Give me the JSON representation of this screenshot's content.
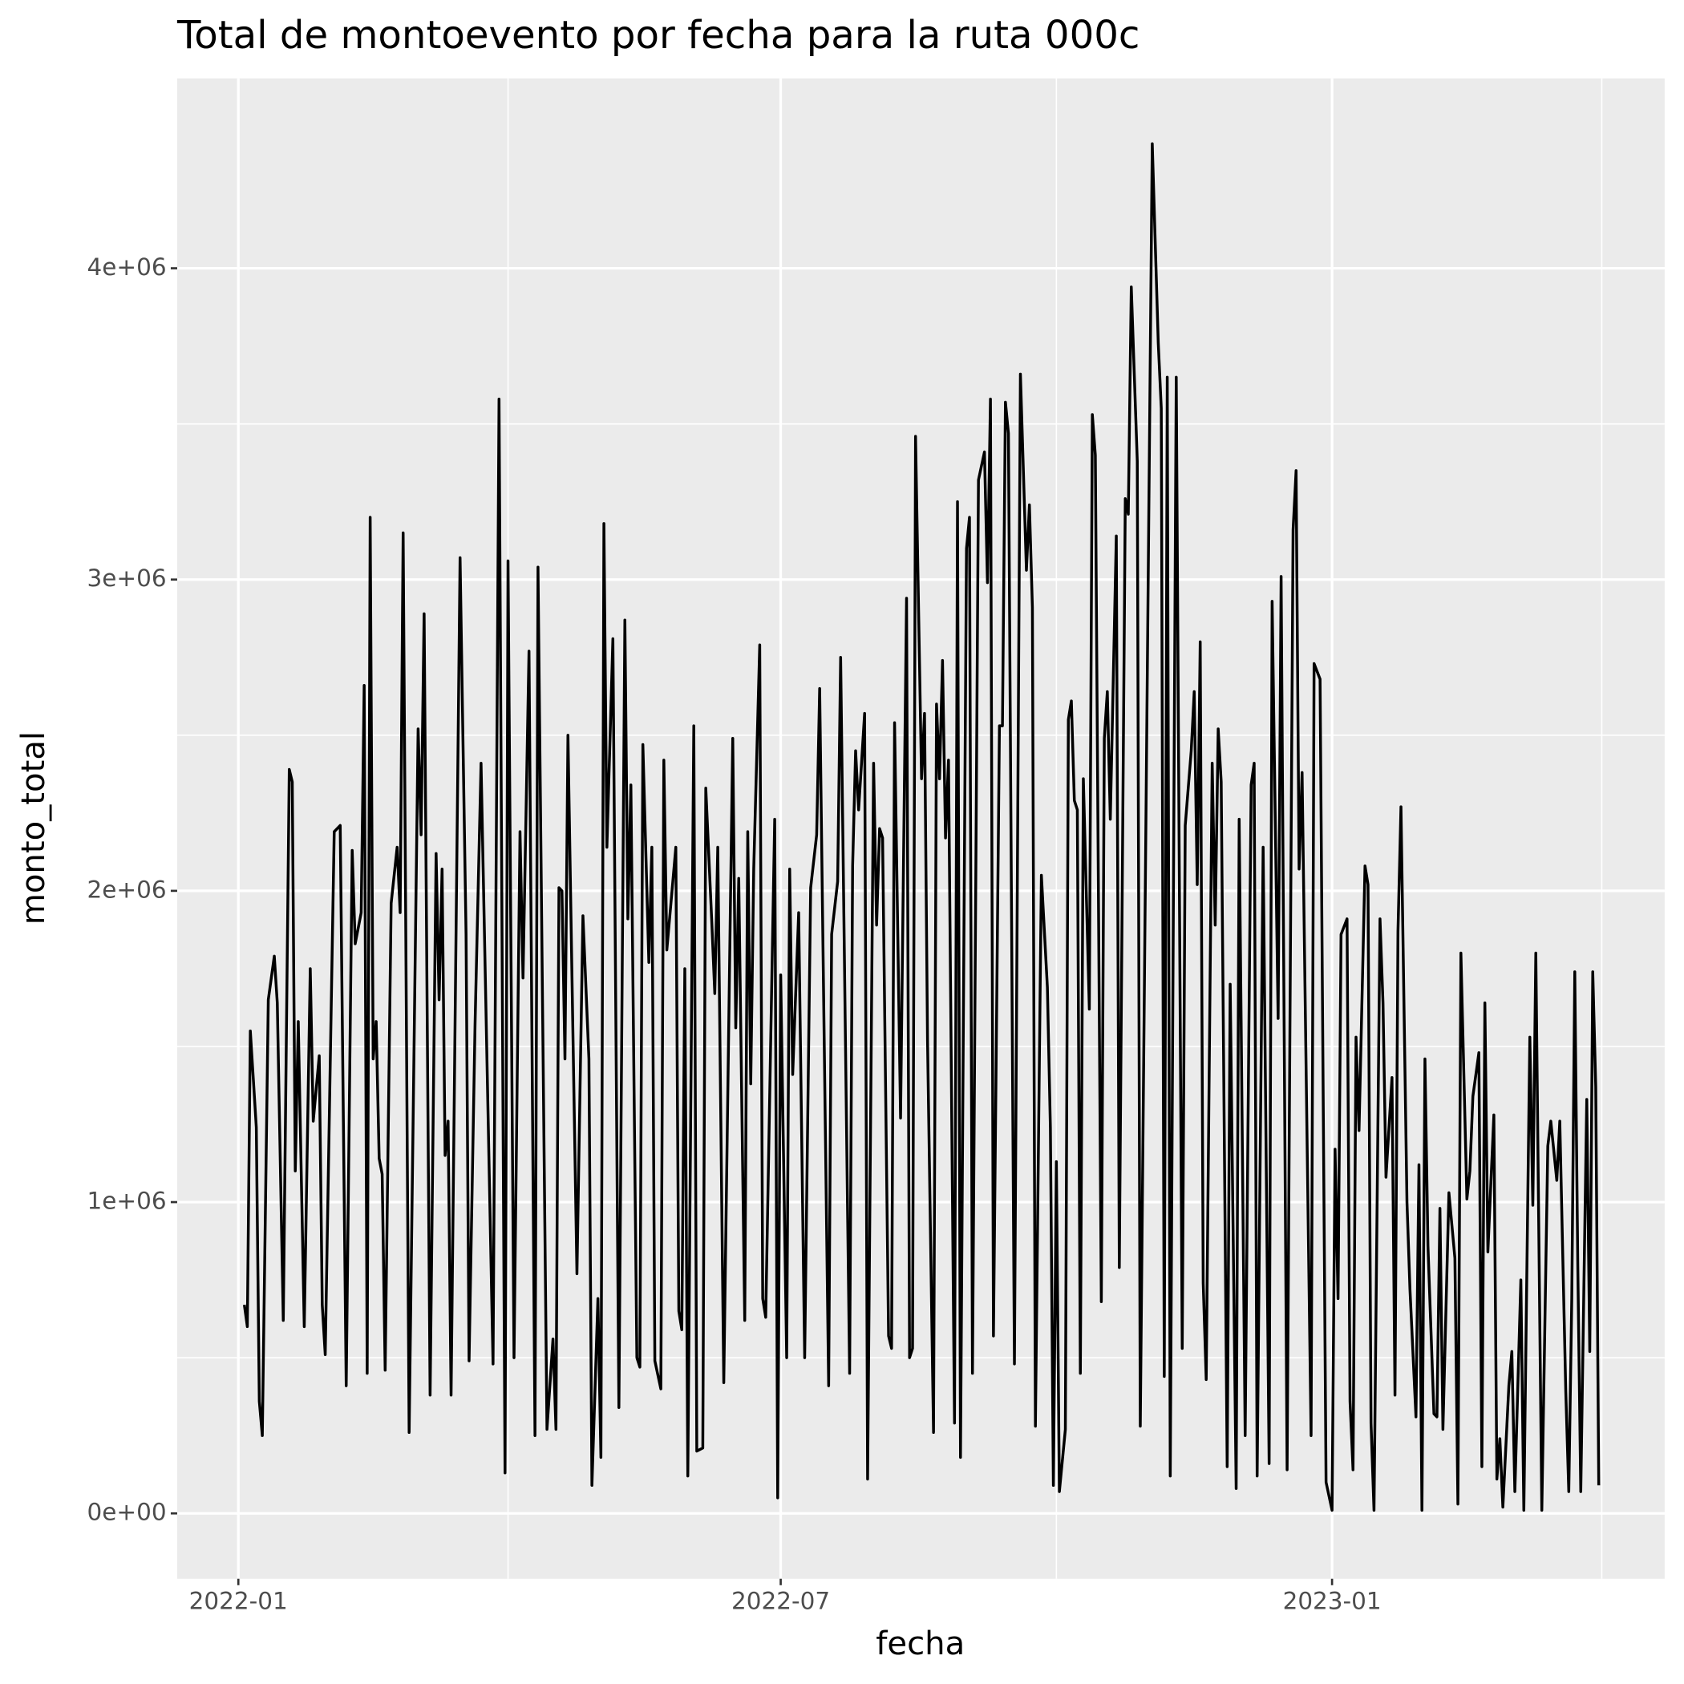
{
  "chart_data": {
    "type": "line",
    "title": "Total de montoevento por fecha para la ruta 000c",
    "x_label": "fecha",
    "y_label": "monto_total",
    "xlim": [
      -20.4,
      476
    ],
    "xticks": [
      {
        "value": 0,
        "label": "2022-01"
      },
      {
        "value": 181,
        "label": "2022-07"
      },
      {
        "value": 365,
        "label": "2023-01"
      }
    ],
    "xminor": [
      90,
      273,
      455
    ],
    "ylim": [
      -210000,
      4610000
    ],
    "yticks": [
      {
        "value": 0,
        "label": "0e+00"
      },
      {
        "value": 1000000,
        "label": "1e+06"
      },
      {
        "value": 2000000,
        "label": "2e+06"
      },
      {
        "value": 3000000,
        "label": "3e+06"
      },
      {
        "value": 4000000,
        "label": "4e+06"
      }
    ],
    "yminor": [
      500000,
      1500000,
      2500000,
      3500000
    ],
    "grid": true,
    "series": [
      {
        "color": "#000000",
        "x": [
          2,
          3,
          4,
          6,
          7,
          8,
          10,
          12,
          13,
          15,
          17,
          18,
          19,
          20,
          22,
          24,
          25,
          27,
          28,
          29,
          32,
          34,
          36,
          38,
          39,
          41,
          42,
          43,
          44,
          45,
          46,
          47,
          48,
          49,
          51,
          53,
          54,
          55,
          57,
          60,
          61,
          62,
          64,
          66,
          67,
          68,
          69,
          70,
          71,
          74,
          76,
          77,
          79,
          81,
          85,
          87,
          89,
          90,
          92,
          94,
          95,
          97,
          99,
          100,
          103,
          105,
          106,
          107,
          108,
          109,
          110,
          113,
          115,
          117,
          118,
          120,
          121,
          122,
          123,
          125,
          127,
          129,
          130,
          131,
          133,
          134,
          135,
          137,
          138,
          139,
          141,
          142,
          143,
          146,
          147,
          148,
          149,
          150,
          152,
          153,
          155,
          156,
          158,
          159,
          160,
          162,
          165,
          166,
          167,
          169,
          170,
          171,
          172,
          174,
          175,
          176,
          179,
          180,
          181,
          183,
          184,
          185,
          187,
          189,
          191,
          193,
          194,
          197,
          198,
          200,
          201,
          204,
          205,
          206,
          207,
          209,
          210,
          212,
          213,
          214,
          215,
          217,
          218,
          219,
          221,
          223,
          224,
          225,
          226,
          228,
          229,
          230,
          232,
          233,
          234,
          235,
          236,
          237,
          239,
          240,
          241,
          243,
          244,
          245,
          247,
          249,
          250,
          251,
          252,
          254,
          255,
          256,
          257,
          259,
          261,
          263,
          264,
          265,
          266,
          268,
          270,
          271,
          272,
          273,
          274,
          276,
          277,
          278,
          279,
          280,
          281,
          282,
          284,
          285,
          286,
          288,
          289,
          290,
          291,
          293,
          294,
          296,
          297,
          298,
          300,
          301,
          305,
          307,
          308,
          309,
          310,
          311,
          313,
          315,
          316,
          318,
          319,
          320,
          321,
          322,
          323,
          325,
          326,
          327,
          328,
          330,
          331,
          333,
          334,
          336,
          338,
          339,
          340,
          342,
          344,
          345,
          347,
          348,
          350,
          352,
          353,
          354,
          355,
          358,
          359,
          361,
          363,
          365,
          366,
          367,
          368,
          370,
          371,
          372,
          373,
          374,
          376,
          377,
          378,
          379,
          381,
          382,
          383,
          385,
          386,
          387,
          388,
          390,
          391,
          393,
          394,
          395,
          396,
          397,
          399,
          400,
          401,
          402,
          404,
          406,
          407,
          408,
          410,
          411,
          412,
          414,
          415,
          416,
          417,
          419,
          420,
          421,
          422,
          424,
          425,
          426,
          428,
          429,
          431,
          432,
          433,
          435,
          437,
          438,
          440,
          441,
          443,
          444,
          445,
          446,
          447,
          448,
          450,
          451,
          452,
          453,
          454
        ],
        "values": [
          670000,
          600000,
          1550000,
          1240000,
          360000,
          250000,
          1650000,
          1790000,
          1640000,
          620000,
          2390000,
          2350000,
          1100000,
          1580000,
          600000,
          1750000,
          1260000,
          1470000,
          670000,
          510000,
          2190000,
          2210000,
          410000,
          2130000,
          1830000,
          1930000,
          2660000,
          450000,
          3200000,
          1460000,
          1580000,
          1140000,
          1090000,
          460000,
          1960000,
          2140000,
          1930000,
          3150000,
          260000,
          2520000,
          2180000,
          2890000,
          380000,
          2120000,
          1650000,
          2070000,
          1150000,
          1260000,
          380000,
          3070000,
          1860000,
          490000,
          1570000,
          2410000,
          480000,
          3580000,
          130000,
          3060000,
          500000,
          2190000,
          1720000,
          2770000,
          250000,
          3040000,
          270000,
          560000,
          270000,
          2010000,
          2000000,
          1460000,
          2500000,
          770000,
          1920000,
          1460000,
          90000,
          690000,
          180000,
          3180000,
          2140000,
          2810000,
          340000,
          2870000,
          1910000,
          2340000,
          500000,
          470000,
          2470000,
          1770000,
          2140000,
          490000,
          400000,
          2420000,
          1810000,
          2140000,
          650000,
          590000,
          1750000,
          120000,
          2530000,
          200000,
          210000,
          2330000,
          1900000,
          1670000,
          2140000,
          420000,
          2490000,
          1560000,
          2040000,
          620000,
          2190000,
          1380000,
          2070000,
          2790000,
          690000,
          630000,
          2230000,
          50000,
          1730000,
          500000,
          2070000,
          1410000,
          1930000,
          500000,
          2010000,
          2180000,
          2650000,
          410000,
          1860000,
          2030000,
          2750000,
          450000,
          2080000,
          2450000,
          2260000,
          2570000,
          110000,
          2410000,
          1890000,
          2200000,
          2170000,
          570000,
          530000,
          2540000,
          1270000,
          2940000,
          500000,
          530000,
          3460000,
          2360000,
          2570000,
          1520000,
          260000,
          2600000,
          2360000,
          2740000,
          2170000,
          2420000,
          290000,
          3250000,
          180000,
          3100000,
          3200000,
          450000,
          3320000,
          3410000,
          2990000,
          3580000,
          570000,
          2530000,
          2530000,
          3570000,
          3470000,
          480000,
          3660000,
          3030000,
          3240000,
          2910000,
          280000,
          2050000,
          1690000,
          1240000,
          90000,
          1130000,
          70000,
          270000,
          2550000,
          2610000,
          2290000,
          2260000,
          450000,
          2360000,
          1620000,
          3530000,
          3400000,
          680000,
          2490000,
          2640000,
          2230000,
          3140000,
          790000,
          3260000,
          3210000,
          3940000,
          3380000,
          280000,
          4400000,
          3760000,
          3550000,
          440000,
          3650000,
          120000,
          3650000,
          530000,
          2210000,
          2450000,
          2640000,
          2020000,
          2800000,
          740000,
          430000,
          2410000,
          1890000,
          2520000,
          2350000,
          150000,
          1700000,
          80000,
          2230000,
          250000,
          2340000,
          2410000,
          120000,
          2140000,
          160000,
          2930000,
          1590000,
          3010000,
          140000,
          3160000,
          3350000,
          2070000,
          2380000,
          250000,
          2730000,
          2680000,
          100000,
          10000,
          1170000,
          690000,
          1860000,
          1910000,
          360000,
          140000,
          1530000,
          1230000,
          2080000,
          2020000,
          290000,
          10000,
          1910000,
          1640000,
          1080000,
          1400000,
          380000,
          1870000,
          2270000,
          1000000,
          720000,
          310000,
          1120000,
          10000,
          1460000,
          860000,
          320000,
          310000,
          980000,
          270000,
          1030000,
          820000,
          30000,
          1800000,
          1010000,
          1100000,
          1340000,
          1480000,
          150000,
          1640000,
          840000,
          1280000,
          110000,
          240000,
          20000,
          410000,
          520000,
          70000,
          750000,
          10000,
          1530000,
          990000,
          1800000,
          10000,
          1180000,
          1260000,
          1070000,
          1260000,
          390000,
          70000,
          690000,
          1740000,
          800000,
          70000,
          1330000,
          520000,
          1740000,
          1370000,
          90000
        ]
      }
    ]
  }
}
